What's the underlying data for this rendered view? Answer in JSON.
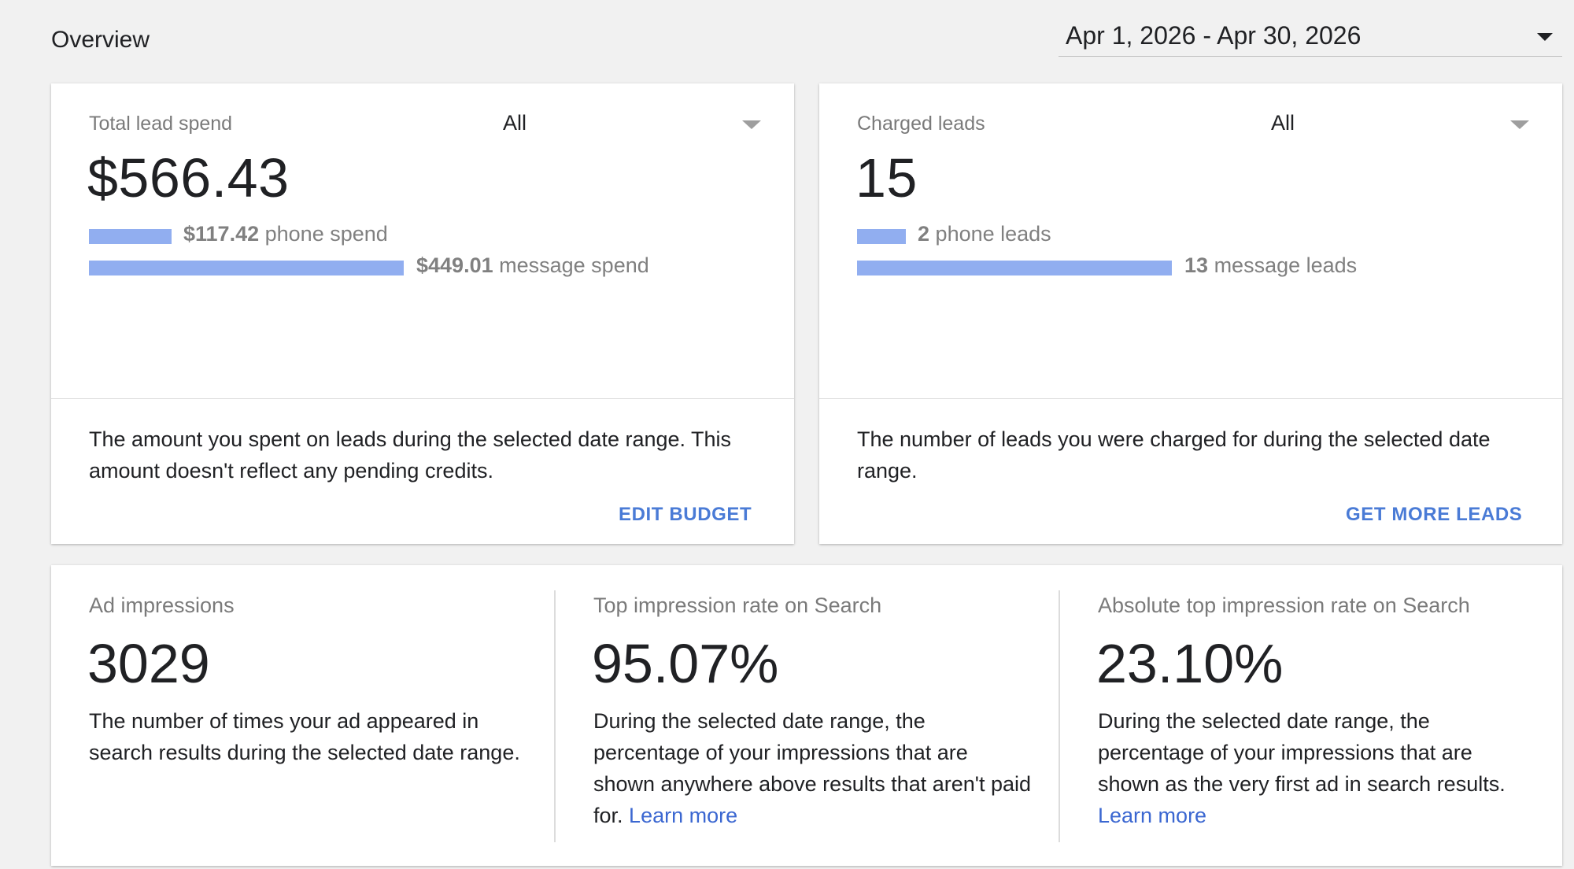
{
  "header": {
    "title": "Overview",
    "date_range": "Apr 1, 2026 - Apr 30, 2026"
  },
  "spend_card": {
    "label": "Total lead spend",
    "filter": "All",
    "value": "$566.43",
    "phone_amount": "$117.42",
    "phone_label": "phone spend",
    "phone_share": 0.2073,
    "message_amount": "$449.01",
    "message_label": "message spend",
    "message_share": 0.7927,
    "description": "The amount you spent on leads during the selected date range. This amount doesn't reflect any pending credits.",
    "action": "EDIT BUDGET"
  },
  "leads_card": {
    "label": "Charged leads",
    "filter": "All",
    "value": "15",
    "phone_count": "2",
    "phone_label": "phone leads",
    "message_count": "13",
    "message_label": "message leads",
    "description": "The number of leads you were charged for during the selected date range.",
    "action": "GET MORE LEADS"
  },
  "metrics": [
    {
      "label": "Ad impressions",
      "value": "3029",
      "description": "The number of times your ad appeared in search results during the selected date range.",
      "link": ""
    },
    {
      "label": "Top impression rate on Search",
      "value": "95.07%",
      "description": "During the selected date range, the percentage of your impressions that are shown anywhere above results that aren't paid for.",
      "link": "Learn more"
    },
    {
      "label": "Absolute top impression rate on Search",
      "value": "23.10%",
      "description": "During the selected date range, the percentage of your impressions that are shown as the very first ad in search results.",
      "link": "Learn more"
    }
  ],
  "colors": {
    "bar": "#91aef0",
    "link": "#4a7bd6",
    "background": "#f1f1f1"
  },
  "icons": {
    "date_dropdown": "chevron-down-icon",
    "filter_dropdown": "chevron-down-icon"
  }
}
